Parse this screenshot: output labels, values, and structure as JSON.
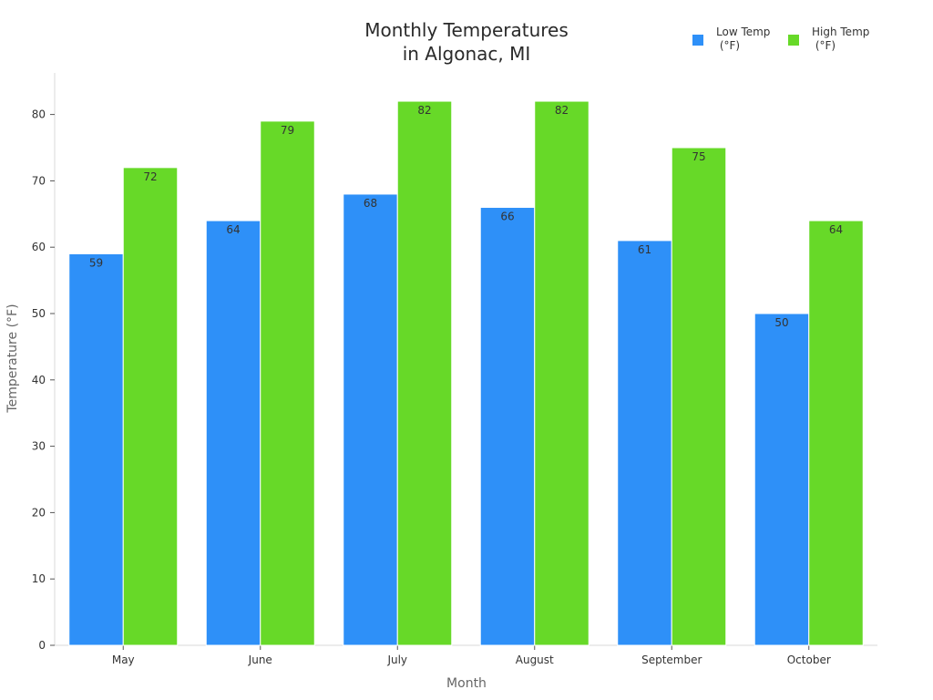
{
  "chart_data": {
    "type": "bar",
    "title_lines": [
      "Monthly Temperatures",
      "in Algonac, MI"
    ],
    "xlabel": "Month",
    "ylabel": "Temperature (°F)",
    "categories": [
      "May",
      "June",
      "July",
      "August",
      "September",
      "October"
    ],
    "series": [
      {
        "name": "Low Temp\n (°F)",
        "values": [
          59,
          64,
          68,
          66,
          61,
          50
        ],
        "color": "#2e90f8"
      },
      {
        "name": "High Temp\n (°F)",
        "values": [
          72,
          79,
          82,
          82,
          75,
          64
        ],
        "color": "#67d928"
      }
    ],
    "ylim": [
      0,
      86
    ],
    "yticks": [
      0,
      10,
      20,
      30,
      40,
      50,
      60,
      70,
      80
    ],
    "grid": false,
    "legend_position": "top-right",
    "data_labels": true
  }
}
